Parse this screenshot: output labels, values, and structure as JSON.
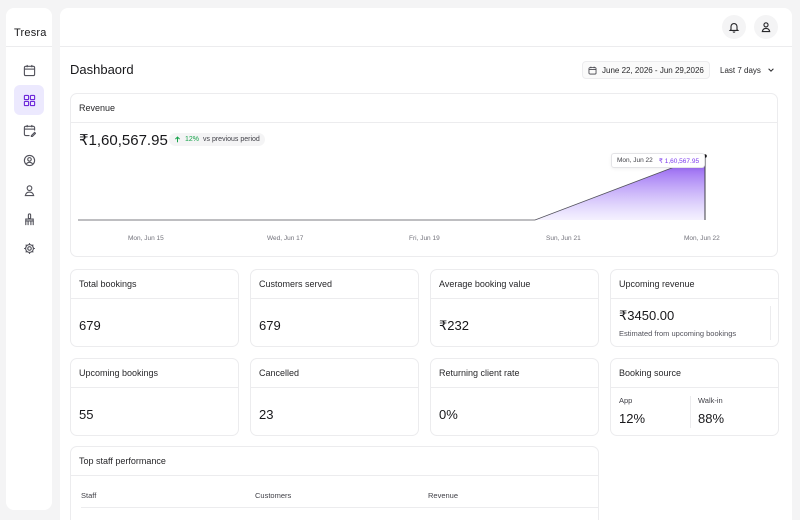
{
  "app": {
    "name": "Tresra"
  },
  "sidebar": {
    "items": [
      {
        "icon": "calendar-icon"
      },
      {
        "icon": "dashboard-grid-icon",
        "active": true
      },
      {
        "icon": "calendar-edit-icon"
      },
      {
        "icon": "user-circle-icon"
      },
      {
        "icon": "user-icon"
      },
      {
        "icon": "brush-icon"
      },
      {
        "icon": "gear-icon"
      }
    ]
  },
  "header": {
    "notification_icon": "bell-icon",
    "profile_icon": "user-icon"
  },
  "page": {
    "title": "Dashbaord",
    "date_range": "June 22, 2026 - Jun 29,2026",
    "period": "Last 7 days"
  },
  "revenue": {
    "title": "Revenue",
    "amount": "₹1,60,567.95",
    "change": "12%",
    "change_label": "vs previous period",
    "tooltip_date": "Mon, Jun 22",
    "tooltip_amount": "₹ 1,60,567.95",
    "x_ticks": [
      "Mon, Jun 15",
      "Wed, Jun 17",
      "Fri, Jun 19",
      "Sun, Jun 21",
      "Mon, Jun 22"
    ],
    "accent": "#7c3aed"
  },
  "stats": {
    "total_bookings": {
      "title": "Total bookings",
      "value": "679"
    },
    "customers_served": {
      "title": "Customers served",
      "value": "679"
    },
    "avg_booking_value": {
      "title": "Average booking value",
      "value": "₹232"
    },
    "upcoming_revenue": {
      "title": "Upcoming revenue",
      "value": "₹3450.00",
      "sub": "Estimated from upcoming bookings"
    },
    "upcoming_bookings": {
      "title": "Upcoming bookings",
      "value": "55"
    },
    "cancelled": {
      "title": "Cancelled",
      "value": "23"
    },
    "returning_rate": {
      "title": "Returning client rate",
      "value": "0%"
    },
    "booking_source": {
      "title": "Booking source",
      "app_label": "App",
      "app_value": "12%",
      "walkin_label": "Walk-in",
      "walkin_value": "88%"
    }
  },
  "staff": {
    "title": "Top staff performance",
    "columns": [
      "Staff",
      "Customers",
      "Revenue"
    ]
  }
}
